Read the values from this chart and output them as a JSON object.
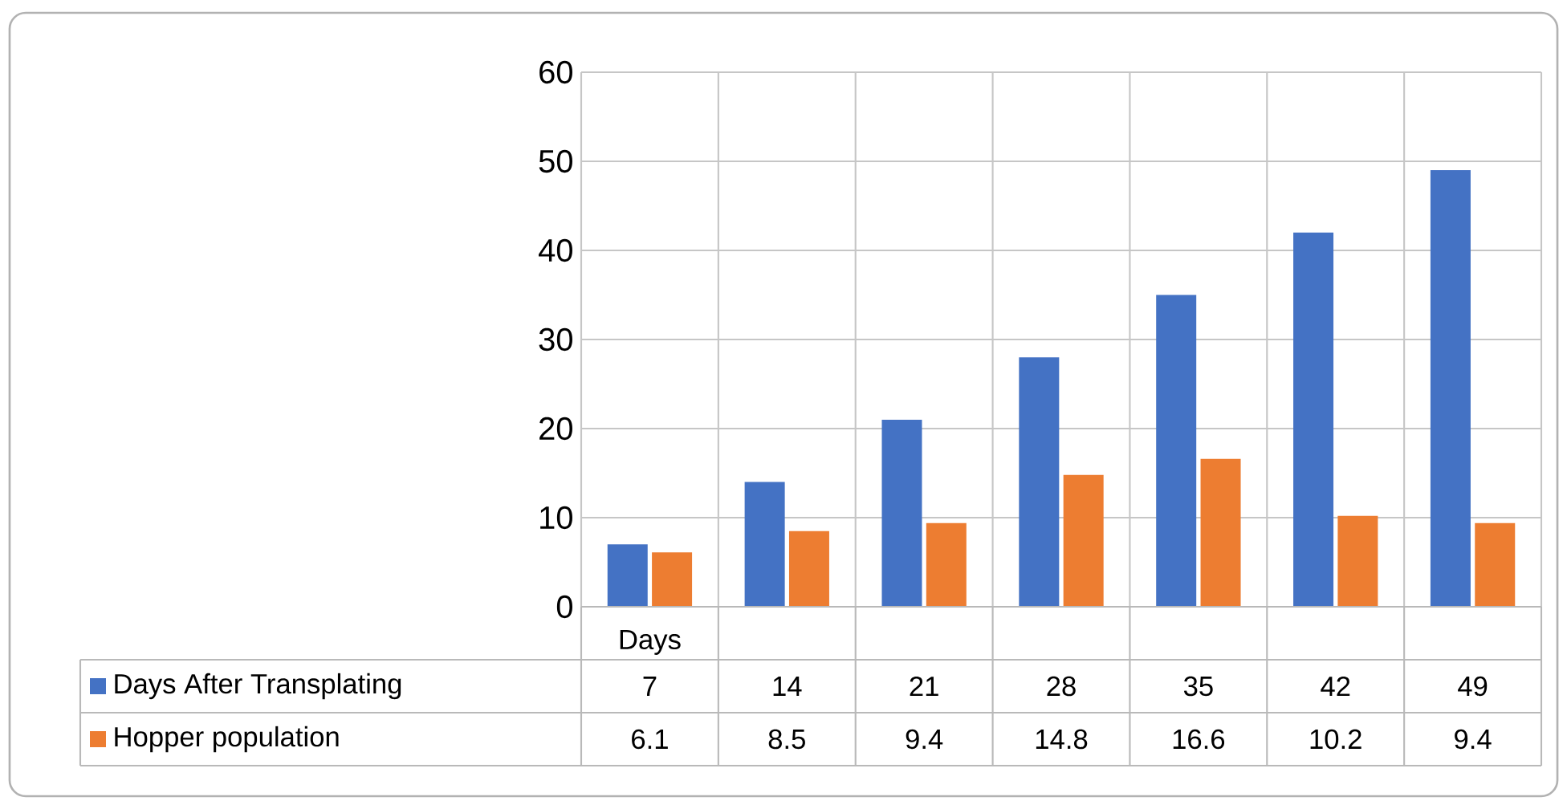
{
  "chart_data": {
    "type": "bar",
    "categories": [
      "Days",
      null,
      null,
      null,
      null,
      null,
      null
    ],
    "series": [
      {
        "name": "Days After Transplating",
        "color": "#4472c4",
        "values": [
          7,
          14,
          21,
          28,
          35,
          42,
          49
        ]
      },
      {
        "name": "Hopper population",
        "color": "#ed7d31",
        "values": [
          6.1,
          8.5,
          9.4,
          14.8,
          16.6,
          10.2,
          9.4
        ]
      }
    ],
    "ylim": [
      0,
      60
    ],
    "yticks": [
      0,
      10,
      20,
      30,
      40,
      50,
      60
    ],
    "grid": true,
    "legend": "bottom left",
    "data_labels": true
  }
}
